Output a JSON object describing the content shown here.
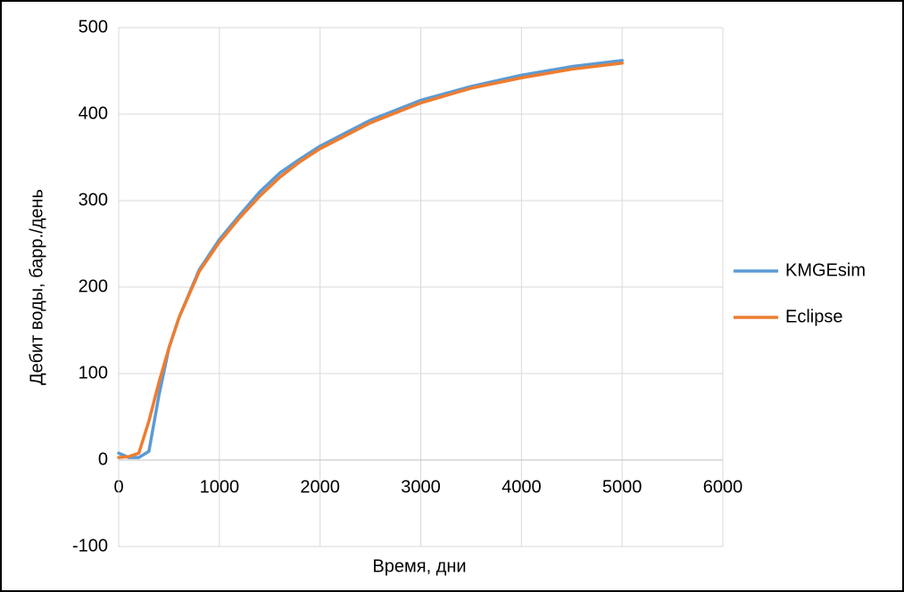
{
  "chart_data": {
    "type": "line",
    "xlabel": "Время, дни",
    "ylabel": "Дебит воды, барр./день",
    "x": [
      0,
      100,
      200,
      300,
      400,
      500,
      600,
      800,
      1000,
      1200,
      1400,
      1600,
      1800,
      2000,
      2500,
      3000,
      3500,
      4000,
      4500,
      5000
    ],
    "series": [
      {
        "name": "KMGEsim",
        "color": "#5b9bd5",
        "values": [
          8,
          3,
          3,
          10,
          75,
          130,
          165,
          220,
          255,
          283,
          310,
          332,
          348,
          363,
          393,
          416,
          432,
          445,
          455,
          462
        ]
      },
      {
        "name": "Eclipse",
        "color": "#ed7d31",
        "values": [
          3,
          4,
          8,
          45,
          90,
          130,
          165,
          218,
          252,
          280,
          305,
          327,
          345,
          360,
          390,
          413,
          430,
          442,
          452,
          459
        ]
      }
    ],
    "xlim": [
      0,
      6000
    ],
    "xticks": [
      0,
      1000,
      2000,
      3000,
      4000,
      5000,
      6000
    ],
    "ylim": [
      -100,
      500
    ],
    "yticks": [
      -100,
      0,
      100,
      200,
      300,
      400,
      500
    ],
    "grid": true,
    "legend": "right"
  }
}
